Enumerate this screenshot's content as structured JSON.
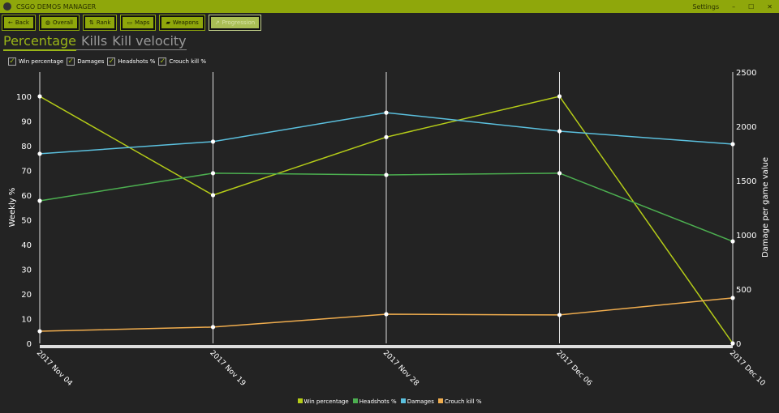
{
  "window": {
    "title": "CSGO DEMOS MANAGER",
    "settings": "Settings",
    "minimize": "–",
    "maximize": "☐",
    "close": "✕"
  },
  "toolbar": [
    {
      "label": "Back",
      "icon": "arrow-left-icon",
      "glyph": "←"
    },
    {
      "label": "Overall",
      "icon": "globe-icon",
      "glyph": "◍"
    },
    {
      "label": "Rank",
      "icon": "sort-icon",
      "glyph": "⇅"
    },
    {
      "label": "Maps",
      "icon": "map-icon",
      "glyph": "▭"
    },
    {
      "label": "Weapons",
      "icon": "gun-icon",
      "glyph": "▰"
    },
    {
      "label": "Progression",
      "icon": "chart-icon",
      "glyph": "↗",
      "disabled": true
    }
  ],
  "tabs": [
    {
      "label": "Percentage",
      "active": true
    },
    {
      "label": "Kills"
    },
    {
      "label": "Kill velocity"
    }
  ],
  "checkboxes": [
    {
      "label": "Win percentage",
      "checked": true
    },
    {
      "label": "Damages",
      "checked": true
    },
    {
      "label": "Headshots %",
      "checked": true
    },
    {
      "label": "Crouch kill %",
      "checked": true
    }
  ],
  "chart_data": {
    "type": "line",
    "x": [
      "2017 Nov 04",
      "2017 Nov 19",
      "2017 Nov 28",
      "2017 Dec 06",
      "2017 Dec 10"
    ],
    "ylabel": "Weekly %",
    "ylim": [
      0,
      100
    ],
    "yticks": [
      0,
      10,
      20,
      30,
      40,
      50,
      60,
      70,
      80,
      90,
      100
    ],
    "y2label": "Damage per game value",
    "y2lim": [
      0,
      2500
    ],
    "y2ticks": [
      0,
      500,
      1000,
      1500,
      2000,
      2500
    ],
    "series": [
      {
        "name": "Win percentage",
        "axis": "left",
        "color": "#b5cc18",
        "values": [
          100,
          60,
          83.5,
          100,
          0
        ]
      },
      {
        "name": "Headshots %",
        "axis": "left",
        "color": "#4caf50",
        "values": [
          57.7,
          68.9,
          68.2,
          68.9,
          41.3
        ]
      },
      {
        "name": "Damages",
        "axis": "right",
        "color": "#5bc0de",
        "values": [
          1747,
          1859,
          2126,
          1955,
          1836
        ]
      },
      {
        "name": "Crouch kill %",
        "axis": "right_pct",
        "color": "#f0ad4e",
        "values": [
          4.9,
          6.6,
          11.8,
          11.5,
          18.4
        ]
      }
    ],
    "legend": "bottom",
    "grid": "vertical"
  }
}
